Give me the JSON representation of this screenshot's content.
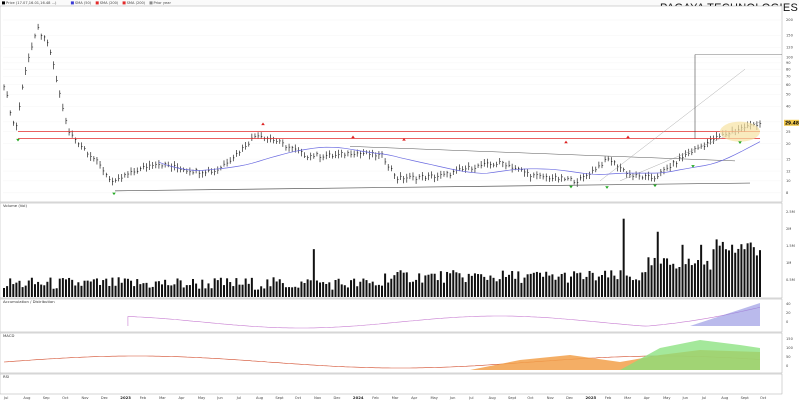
{
  "header": {
    "title": "PAGAYA TECHNOLOGIES",
    "legend_items": [
      {
        "label": "Price (17.07,16.01,16.48 ...)",
        "color": "#000000"
      },
      {
        "label": "SMA (50)",
        "color": "#3b3bd6"
      },
      {
        "label": "SMA (200)",
        "color": "#e32b2b"
      },
      {
        "label": "SMA (200)",
        "color": "#e32b2b"
      },
      {
        "label": "Prior year",
        "color": "#888888"
      }
    ],
    "current_price": "29.48"
  },
  "panels": {
    "volume_title": "Volume (Vol)",
    "ad_title": "Accumulation / Distribution",
    "macd_title": "MACD",
    "rsi_title": "RSI"
  },
  "colors": {
    "price_bar": "#000000",
    "resistance": "#e32b2b",
    "trend": "#555555",
    "sma": "#6a6ae0",
    "highlight": "#f6e3a3",
    "up_arrow": "#22aa22",
    "down_arrow": "#dd2222"
  },
  "chart_data": {
    "type": "bar",
    "x_labels": [
      "Jul",
      "Aug",
      "Sep",
      "Oct",
      "Nov",
      "Dec",
      "2023",
      "Feb",
      "Mar",
      "Apr",
      "May",
      "Jun",
      "Jul",
      "Aug",
      "Sept",
      "Oct",
      "Nov",
      "Dec",
      "2024",
      "Feb",
      "Mar",
      "Apr",
      "May",
      "Jun",
      "Jul",
      "Aug",
      "Sept",
      "Oct",
      "Nov",
      "Dec",
      "2025",
      "Feb",
      "Mar",
      "Apr",
      "May",
      "Jun",
      "Jul",
      "Aug",
      "Sept",
      "Oct"
    ],
    "y_ticks": [
      8,
      10,
      12,
      15,
      20,
      25,
      30,
      40,
      50,
      60,
      70,
      80,
      90,
      100,
      120,
      150,
      200
    ],
    "price_axis": "log",
    "price_range": [
      7,
      250
    ],
    "resistance_levels": [
      25,
      22
    ],
    "current_price": 29.48,
    "volume_ticks": [
      "2.5M",
      "2M",
      "1.5M",
      "1M",
      "0.5M"
    ],
    "ad_ticks": [
      "40",
      "20",
      "0"
    ],
    "macd_ticks": [
      "150",
      "100",
      "50",
      "0"
    ]
  }
}
